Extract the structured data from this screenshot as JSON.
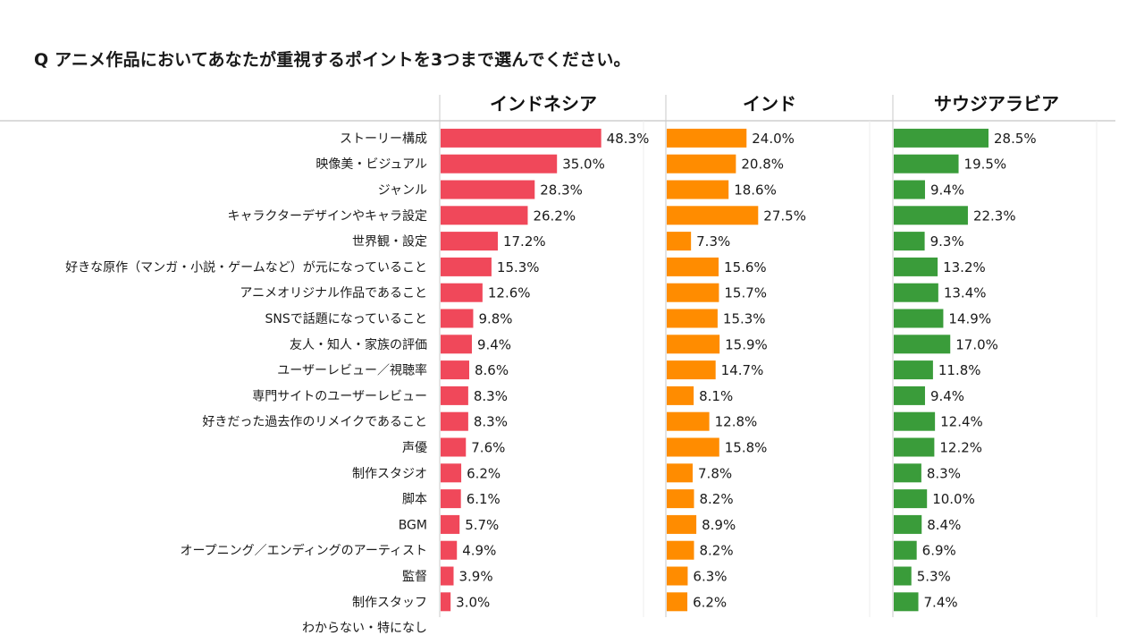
{
  "question": "Q アニメ作品においてあなたが重視するポイントを3つまで選んでください。",
  "chart_data": {
    "type": "bar",
    "orientation": "horizontal",
    "categories": [
      "ストーリー構成",
      "映像美・ビジュアル",
      "ジャンル",
      "キャラクターデザインやキャラ設定",
      "世界観・設定",
      "好きな原作（マンガ・小説・ゲームなど）が元になっていること",
      "アニメオリジナル作品であること",
      "SNSで話題になっていること",
      "友人・知人・家族の評価",
      "ユーザーレビュー／視聴率",
      "専門サイトのユーザーレビュー",
      "好きだった過去作のリメイクであること",
      "声優",
      "制作スタジオ",
      "脚本",
      "BGM",
      "オープニング／エンディングのアーティスト",
      "監督",
      "制作スタッフ",
      "わからない・特になし"
    ],
    "series": [
      {
        "name": "インドネシア",
        "color": "#f0485a",
        "values": [
          48.3,
          35.0,
          28.3,
          26.2,
          17.2,
          15.3,
          12.6,
          9.8,
          9.4,
          8.6,
          8.3,
          8.3,
          7.6,
          6.2,
          6.1,
          5.7,
          4.9,
          3.9,
          3.0,
          null
        ],
        "labels": [
          "48.3%",
          "35.0%",
          "28.3%",
          "26.2%",
          "17.2%",
          "15.3%",
          "12.6%",
          "9.8%",
          "9.4%",
          "8.6%",
          "8.3%",
          "8.3%",
          "7.6%",
          "6.2%",
          "6.1%",
          "5.7%",
          "4.9%",
          "3.9%",
          "3.0%",
          ""
        ]
      },
      {
        "name": "インド",
        "color": "#ff8c00",
        "values": [
          24.0,
          20.8,
          18.6,
          27.5,
          7.3,
          15.6,
          15.7,
          15.3,
          15.9,
          14.7,
          8.1,
          12.8,
          15.8,
          7.8,
          8.2,
          8.9,
          8.2,
          6.3,
          6.2,
          null
        ],
        "labels": [
          "24.0%",
          "20.8%",
          "18.6%",
          "27.5%",
          "7.3%",
          "15.6%",
          "15.7%",
          "15.3%",
          "15.9%",
          "14.7%",
          "8.1%",
          "12.8%",
          "15.8%",
          "7.8%",
          "8.2%",
          "8.9%",
          "8.2%",
          "6.3%",
          "6.2%",
          ""
        ]
      },
      {
        "name": "サウジアラビア",
        "color": "#3a9c3a",
        "values": [
          28.5,
          19.5,
          9.4,
          22.3,
          9.3,
          13.2,
          13.4,
          14.9,
          17.0,
          11.8,
          9.4,
          12.4,
          12.2,
          8.3,
          10.0,
          8.4,
          6.9,
          5.3,
          7.4,
          null
        ],
        "labels": [
          "28.5%",
          "19.5%",
          "9.4%",
          "22.3%",
          "9.3%",
          "13.2%",
          "13.4%",
          "14.9%",
          "17.0%",
          "11.8%",
          "9.4%",
          "12.4%",
          "12.2%",
          "8.3%",
          "10.0%",
          "8.4%",
          "6.9%",
          "5.3%",
          "7.4%",
          ""
        ]
      }
    ],
    "grid": true,
    "legend": "panel-titles"
  }
}
